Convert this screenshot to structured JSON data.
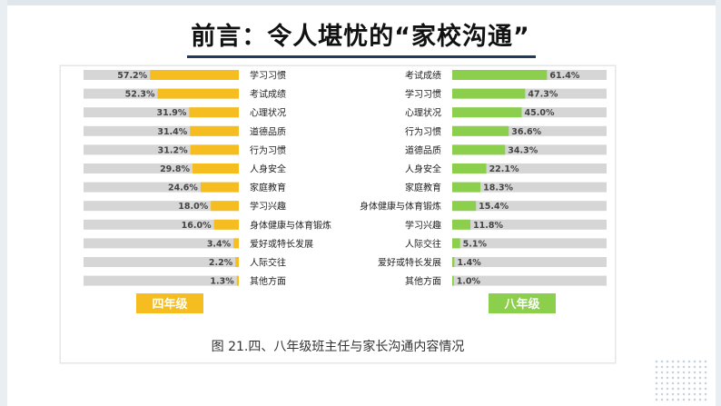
{
  "page": {
    "title": "前言：令人堪忧的“家校沟通”"
  },
  "colors": {
    "grade4": "#f5bd1f",
    "grade8": "#8bcf4d",
    "track": "#d6d6d6",
    "title_rule": "#1f3a5a"
  },
  "figure_caption": "图 21.四、八年级班主任与家长沟通内容情况",
  "chart_data": [
    {
      "type": "bar",
      "orientation": "horizontal",
      "direction": "right-to-left",
      "badge": "四年级",
      "categories": [
        "学习习惯",
        "考试成绩",
        "心理状况",
        "道德品质",
        "行为习惯",
        "人身安全",
        "家庭教育",
        "学习兴趣",
        "身体健康与体育锻炼",
        "爱好或特长发展",
        "人际交往",
        "其他方面"
      ],
      "values": [
        57.2,
        52.3,
        31.9,
        31.4,
        31.2,
        29.8,
        24.6,
        18.0,
        16.0,
        3.4,
        2.2,
        1.3
      ],
      "labels": [
        "57.2%",
        "52.3%",
        "31.9%",
        "31.4%",
        "31.2%",
        "29.8%",
        "24.6%",
        "18.0%",
        "16.0%",
        "3.4%",
        "2.2%",
        "1.3%"
      ],
      "unit": "%",
      "xlim": [
        0,
        100
      ]
    },
    {
      "type": "bar",
      "orientation": "horizontal",
      "direction": "left-to-right",
      "badge": "八年级",
      "categories": [
        "考试成绩",
        "学习习惯",
        "心理状况",
        "行为习惯",
        "道德品质",
        "人身安全",
        "家庭教育",
        "身体健康与体育锻炼",
        "学习兴趣",
        "人际交往",
        "爱好或特长发展",
        "其他方面"
      ],
      "values": [
        61.4,
        47.3,
        45.0,
        36.6,
        34.3,
        22.1,
        18.3,
        15.4,
        11.8,
        5.1,
        1.4,
        1.0
      ],
      "labels": [
        "61.4%",
        "47.3%",
        "45.0%",
        "36.6%",
        "34.3%",
        "22.1%",
        "18.3%",
        "15.4%",
        "11.8%",
        "5.1%",
        "1.4%",
        "1.0%"
      ],
      "unit": "%",
      "xlim": [
        0,
        100
      ]
    }
  ]
}
